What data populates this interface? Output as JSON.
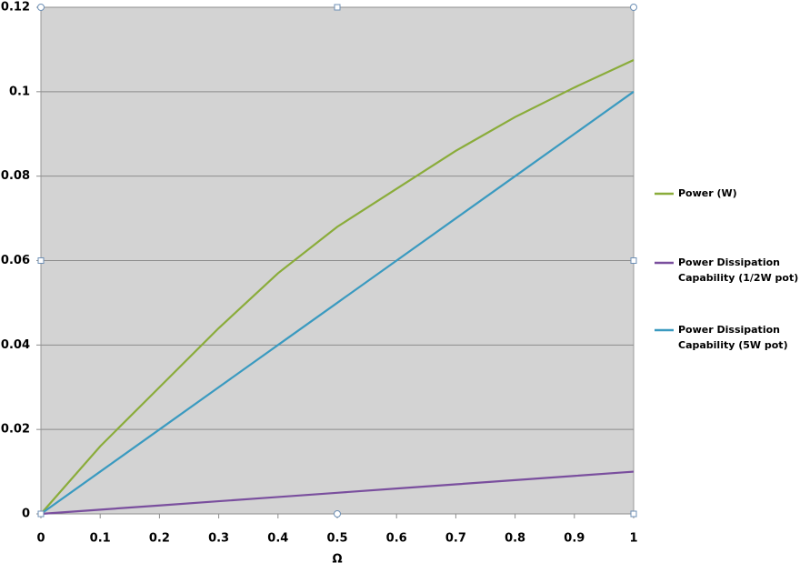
{
  "chart_data": {
    "type": "line",
    "x": [
      0,
      0.1,
      0.2,
      0.3,
      0.4,
      0.5,
      0.6,
      0.7,
      0.8,
      0.9,
      1
    ],
    "series": [
      {
        "name": "Power (W)",
        "color": "#8aac3a",
        "values": [
          0,
          0.016,
          0.03,
          0.044,
          0.057,
          0.068,
          0.077,
          0.086,
          0.094,
          0.101,
          0.1075
        ]
      },
      {
        "name": "Power Dissipation Capability (1/2W pot)",
        "color": "#7a4f9e",
        "values": [
          0,
          0.001,
          0.002,
          0.003,
          0.004,
          0.005,
          0.006,
          0.007,
          0.008,
          0.009,
          0.01
        ]
      },
      {
        "name": "Power Dissipation Capability (5W pot)",
        "color": "#3a9ac0",
        "values": [
          0,
          0.01,
          0.02,
          0.03,
          0.04,
          0.05,
          0.06,
          0.07,
          0.08,
          0.09,
          0.1
        ]
      }
    ],
    "x_label": "Ω",
    "xlim": [
      0,
      1
    ],
    "xticks": [
      0,
      0.1,
      0.2,
      0.3,
      0.4,
      0.5,
      0.6,
      0.7,
      0.8,
      0.9,
      1
    ],
    "ylim": [
      0,
      0.12
    ],
    "yticks": [
      0,
      0.02,
      0.04,
      0.06,
      0.08,
      0.1,
      0.12
    ],
    "grid": true,
    "legend": "right"
  }
}
